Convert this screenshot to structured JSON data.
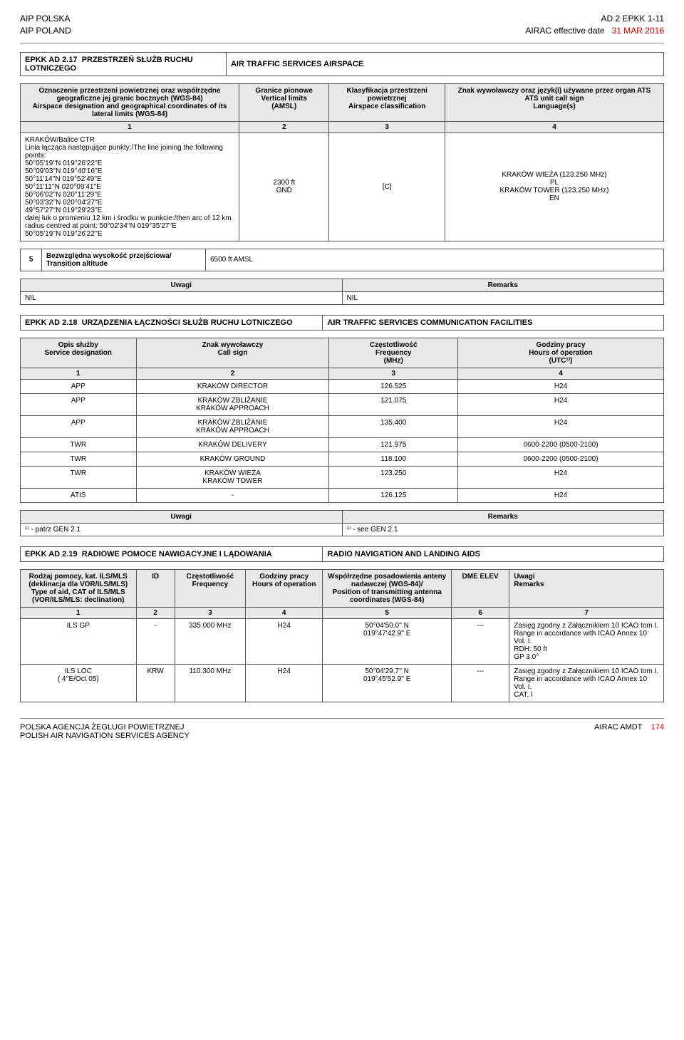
{
  "header": {
    "left1": "AIP POLSKA",
    "left2": "AIP POLAND",
    "right1": "AD 2 EPKK 1-11",
    "right2a": "AIRAC effective date",
    "right2b": "31 MAR 2016"
  },
  "sec17": {
    "code": "EPKK  AD 2.17",
    "titlePL": "PRZESTRZEŃ SŁUŻB RUCHU LOTNICZEGO",
    "titleEN": "AIR TRAFFIC SERVICES AIRSPACE",
    "col1h": "Oznaczenie przestrzeni powietrznej oraz współrzędne geograficzne jej granic bocznych (WGS-84)\nAirspace designation and geographical coordinates of its lateral limits (WGS-84)",
    "col2h": "Granice pionowe\nVertical limits\n(AMSL)",
    "col3h": "Klasyfikacja przestrzeni powietrznej\nAirspace classification",
    "col4h": "Znak wywoławczy oraz język(i) używane przez organ ATS\nATS unit call sign\nLanguage(s)",
    "n1": "1",
    "n2": "2",
    "n3": "3",
    "n4": "4",
    "body1": "KRAKÓW/Balice  CTR\nLinia łącząca następujące punkty:/The line joining the following points:\n50°05'19''N  019°26'22''E\n50°09'03''N  019°40'16''E\n50°11'14''N  019°52'49''E\n50°11'11''N  020°09'41''E\n50°06'02''N  020°11'29''E\n50°03'32''N  020°04'27''E\n49°57'27''N  019°29'23''E\ndalej łuk o promieniu 12 km i środku w punkcie:/then arc of 12 km radius centred at point: 50°02'34''N 019°35'27''E\n50°05'19''N  019°26'22''E",
    "body2": "2300 ft\nGND",
    "body3": "[C]",
    "body4": "KRAKÓW WIEŻA (123.250 MHz)\nPL\nKRAKÓW TOWER (123.250 MHz)\nEN",
    "trans_n": "5",
    "trans_lbl": "Bezwzględna wysokość przejściowa/\nTransition altitude",
    "trans_val": "6500 ft AMSL"
  },
  "rem": {
    "u": "Uwagi",
    "r": "Remarks",
    "nil": "NIL"
  },
  "sec18": {
    "code": "EPKK  AD 2.18",
    "titlePL": "URZĄDZENIA ŁĄCZNOŚCI SŁUŻB RUCHU LOTNICZEGO",
    "titleEN": "AIR TRAFFIC SERVICES COMMUNICATION FACILITIES",
    "h1": "Opis służby\nService designation",
    "h2": "Znak wywoławczy\nCall sign",
    "h3": "Częstotliwość\nFrequency\n(MHz)",
    "h4": "Godziny pracy\nHours of operation\n(UTC¹⁾)",
    "rows": [
      [
        "APP",
        "KRAKÓW DIRECTOR",
        "126.525",
        "H24"
      ],
      [
        "APP",
        "KRAKÓW ZBLIŻANIE\nKRAKÓW APPROACH",
        "121.075",
        "H24"
      ],
      [
        "APP",
        "KRAKÓW ZBLIŻANIE\nKRAKÓW APPROACH",
        "135.400",
        "H24"
      ],
      [
        "TWR",
        "KRAKÓW DELIVERY",
        "121.975",
        "0600-2200 (0500-2100)"
      ],
      [
        "TWR",
        "KRAKÓW GROUND",
        "118.100",
        "0600-2200 (0500-2100)"
      ],
      [
        "TWR",
        "KRAKÓW WIEŻA\nKRAKÓW TOWER",
        "123.250",
        "H24"
      ],
      [
        "ATIS",
        "-",
        "126.125",
        "H24"
      ]
    ],
    "rem_l": "¹⁾ - patrz GEN 2.1",
    "rem_r": "¹⁾ - see GEN 2.1"
  },
  "sec19": {
    "code": "EPKK  AD 2.19",
    "titlePL": "RADIOWE POMOCE NAWIGACYJNE I LĄDOWANIA",
    "titleEN": "RADIO NAVIGATION AND LANDING AIDS",
    "h1": "Rodzaj pomocy, kat. ILS/MLS (deklinacja dla VOR/ILS/MLS)\nType of aid, CAT of ILS/MLS (VOR/ILS/MLS: declination)",
    "h2": "ID",
    "h3": "Częstotliwość\nFrequency",
    "h4": "Godziny pracy\nHours of operation",
    "h5": "Współrzędne posadowienia anteny nadawczej (WGS-84)/\nPosition of transmitting antenna coordinates (WGS-84)",
    "h6": "DME ELEV",
    "h7": "Uwagi\nRemarks",
    "n": [
      "1",
      "2",
      "3",
      "4",
      "5",
      "6",
      "7"
    ],
    "rows": [
      [
        "ILS GP",
        "-",
        "335.000 MHz",
        "H24",
        "50°04'50.0'' N\n019°47'42.9'' E",
        "---",
        "Zasięg zgodny z Załącznikiem 10 ICAO tom I.\nRange in accordance with ICAO Annex 10 Vol. I.\nRDH: 50 ft\nGP 3.0°"
      ],
      [
        "ILS LOC\n( 4°E/Oct 05)",
        "KRW",
        "110.300 MHz",
        "H24",
        "50°04'29.7'' N\n019°45'52.9'' E",
        "---",
        "Zasięg zgodny z Załącznikiem 10 ICAO tom I.\nRange in accordance with ICAO Annex 10 Vol. I.\nCAT. I"
      ]
    ]
  },
  "footer": {
    "left1": "POLSKA AGENCJA ŻEGLUGI POWIETRZNEJ",
    "left2": "POLISH AIR NAVIGATION SERVICES AGENCY",
    "right1": "AIRAC AMDT",
    "right2": "174"
  }
}
